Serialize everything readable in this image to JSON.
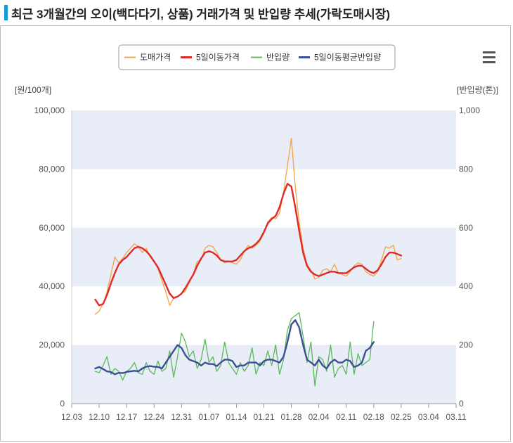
{
  "title": "최근 3개월간의 오이(백다다기, 상품) 거래가격 및 반입량 추세(가락도매시장)",
  "menu_icon": "hamburger-menu-icon",
  "colors": {
    "price": "#f5a340",
    "price_ma": "#e02a2a",
    "volume": "#5cb85c",
    "volume_ma": "#3b4f94",
    "band": "#e8edf8",
    "title_bar": "#1a9bd7"
  },
  "chart_data": {
    "type": "line",
    "legend": [
      "도매가격",
      "5일이동가격",
      "반입량",
      "5일이동평균반입량"
    ],
    "legend_position": "top-center",
    "y_left": {
      "label": "[원/100개]",
      "range": [
        0,
        100000
      ],
      "ticks": [
        "0",
        "20,000",
        "40,000",
        "60,000",
        "80,000",
        "100,000"
      ]
    },
    "y_right": {
      "label": "[반입량(톤)]",
      "range": [
        0,
        1000
      ],
      "ticks": [
        "0",
        "200",
        "400",
        "600",
        "800",
        "1,000"
      ]
    },
    "x_ticks": [
      "12.03",
      "12.10",
      "12.17",
      "12.24",
      "12.31",
      "01.07",
      "01.14",
      "01.21",
      "01.28",
      "02.04",
      "02.11",
      "02.18",
      "02.25",
      "03.04",
      "03.11"
    ],
    "x_range_days": [
      0,
      98
    ],
    "series": [
      {
        "name": "도매가격",
        "axis": "left",
        "points": [
          [
            6,
            30500
          ],
          [
            7,
            31500
          ],
          [
            8,
            34000
          ],
          [
            9,
            38000
          ],
          [
            10,
            44000
          ],
          [
            11,
            50000
          ],
          [
            12,
            48000
          ],
          [
            13,
            49500
          ],
          [
            14,
            51500
          ],
          [
            15,
            53000
          ],
          [
            16,
            54500
          ],
          [
            17,
            53500
          ],
          [
            18,
            51500
          ],
          [
            19,
            53000
          ],
          [
            20,
            50000
          ],
          [
            21,
            48500
          ],
          [
            22,
            46000
          ],
          [
            23,
            42000
          ],
          [
            24,
            38000
          ],
          [
            25,
            33500
          ],
          [
            26,
            36000
          ],
          [
            27,
            36500
          ],
          [
            28,
            37500
          ],
          [
            29,
            38500
          ],
          [
            31,
            44000
          ],
          [
            32,
            48500
          ],
          [
            33,
            49000
          ],
          [
            34,
            53000
          ],
          [
            35,
            54000
          ],
          [
            36,
            53500
          ],
          [
            37,
            51500
          ],
          [
            38,
            49000
          ],
          [
            39,
            48000
          ],
          [
            40,
            48500
          ],
          [
            41,
            48000
          ],
          [
            42,
            47500
          ],
          [
            43,
            49000
          ],
          [
            44,
            52000
          ],
          [
            45,
            54000
          ],
          [
            46,
            53000
          ],
          [
            47,
            54000
          ],
          [
            48,
            55500
          ],
          [
            49,
            58000
          ],
          [
            50,
            62000
          ],
          [
            51,
            63500
          ],
          [
            52,
            63000
          ],
          [
            53,
            65000
          ],
          [
            54,
            72000
          ],
          [
            55,
            81000
          ],
          [
            56,
            90500
          ],
          [
            57,
            74000
          ],
          [
            58,
            62000
          ],
          [
            59,
            53000
          ],
          [
            60,
            47500
          ],
          [
            61,
            45500
          ],
          [
            62,
            42500
          ],
          [
            63,
            43000
          ],
          [
            64,
            45500
          ],
          [
            65,
            46000
          ],
          [
            66,
            45000
          ],
          [
            67,
            47500
          ],
          [
            68,
            44500
          ],
          [
            69,
            44000
          ],
          [
            70,
            43500
          ],
          [
            71,
            45000
          ],
          [
            72,
            47000
          ],
          [
            73,
            48000
          ],
          [
            74,
            47500
          ],
          [
            75,
            45000
          ],
          [
            76,
            44000
          ],
          [
            77,
            43500
          ],
          [
            78,
            45000
          ],
          [
            79,
            49000
          ],
          [
            80,
            53500
          ],
          [
            81,
            53000
          ],
          [
            82,
            54000
          ],
          [
            83,
            49000
          ],
          [
            84,
            49500
          ]
        ]
      },
      {
        "name": "5일이동가격",
        "axis": "left",
        "points": [
          [
            6,
            35500
          ],
          [
            7,
            33500
          ],
          [
            8,
            34000
          ],
          [
            9,
            37000
          ],
          [
            10,
            41000
          ],
          [
            11,
            44500
          ],
          [
            12,
            47500
          ],
          [
            13,
            49000
          ],
          [
            14,
            50000
          ],
          [
            15,
            51500
          ],
          [
            16,
            53000
          ],
          [
            17,
            53500
          ],
          [
            18,
            53000
          ],
          [
            19,
            52000
          ],
          [
            20,
            50500
          ],
          [
            21,
            48500
          ],
          [
            22,
            46500
          ],
          [
            23,
            43500
          ],
          [
            24,
            40500
          ],
          [
            25,
            37500
          ],
          [
            26,
            36000
          ],
          [
            27,
            36500
          ],
          [
            28,
            37500
          ],
          [
            29,
            39500
          ],
          [
            31,
            44000
          ],
          [
            32,
            47000
          ],
          [
            33,
            49500
          ],
          [
            34,
            51500
          ],
          [
            35,
            52000
          ],
          [
            36,
            51500
          ],
          [
            37,
            50500
          ],
          [
            38,
            49000
          ],
          [
            39,
            48500
          ],
          [
            40,
            48500
          ],
          [
            41,
            48500
          ],
          [
            42,
            49000
          ],
          [
            43,
            50500
          ],
          [
            44,
            52000
          ],
          [
            45,
            53000
          ],
          [
            46,
            53500
          ],
          [
            47,
            54500
          ],
          [
            48,
            56000
          ],
          [
            49,
            58500
          ],
          [
            50,
            61500
          ],
          [
            51,
            63000
          ],
          [
            52,
            64000
          ],
          [
            53,
            67000
          ],
          [
            54,
            71500
          ],
          [
            55,
            75000
          ],
          [
            56,
            74000
          ],
          [
            57,
            67000
          ],
          [
            58,
            59000
          ],
          [
            59,
            51500
          ],
          [
            60,
            47000
          ],
          [
            61,
            45000
          ],
          [
            62,
            44000
          ],
          [
            63,
            43500
          ],
          [
            64,
            44000
          ],
          [
            65,
            44500
          ],
          [
            66,
            45000
          ],
          [
            67,
            45000
          ],
          [
            68,
            44500
          ],
          [
            69,
            44500
          ],
          [
            70,
            44500
          ],
          [
            71,
            45500
          ],
          [
            72,
            46500
          ],
          [
            73,
            47000
          ],
          [
            74,
            47000
          ],
          [
            75,
            46000
          ],
          [
            76,
            45000
          ],
          [
            77,
            44500
          ],
          [
            78,
            45500
          ],
          [
            79,
            47500
          ],
          [
            80,
            50000
          ],
          [
            81,
            51500
          ],
          [
            82,
            51500
          ],
          [
            83,
            51000
          ],
          [
            84,
            50500
          ]
        ]
      },
      {
        "name": "반입량",
        "axis": "right",
        "points": [
          [
            6,
            110
          ],
          [
            7,
            105
          ],
          [
            8,
            130
          ],
          [
            9,
            160
          ],
          [
            10,
            100
          ],
          [
            11,
            120
          ],
          [
            12,
            110
          ],
          [
            13,
            80
          ],
          [
            14,
            110
          ],
          [
            15,
            120
          ],
          [
            16,
            140
          ],
          [
            17,
            105
          ],
          [
            18,
            100
          ],
          [
            19,
            140
          ],
          [
            20,
            110
          ],
          [
            21,
            100
          ],
          [
            22,
            145
          ],
          [
            23,
            110
          ],
          [
            24,
            120
          ],
          [
            25,
            180
          ],
          [
            26,
            90
          ],
          [
            27,
            160
          ],
          [
            28,
            240
          ],
          [
            29,
            210
          ],
          [
            30,
            160
          ],
          [
            31,
            180
          ],
          [
            32,
            120
          ],
          [
            33,
            150
          ],
          [
            34,
            220
          ],
          [
            35,
            140
          ],
          [
            36,
            160
          ],
          [
            37,
            110
          ],
          [
            38,
            130
          ],
          [
            39,
            210
          ],
          [
            40,
            140
          ],
          [
            41,
            120
          ],
          [
            42,
            100
          ],
          [
            43,
            140
          ],
          [
            44,
            110
          ],
          [
            45,
            130
          ],
          [
            46,
            190
          ],
          [
            47,
            100
          ],
          [
            48,
            140
          ],
          [
            49,
            130
          ],
          [
            50,
            180
          ],
          [
            51,
            130
          ],
          [
            52,
            200
          ],
          [
            53,
            100
          ],
          [
            54,
            150
          ],
          [
            55,
            250
          ],
          [
            56,
            290
          ],
          [
            57,
            300
          ],
          [
            58,
            310
          ],
          [
            59,
            230
          ],
          [
            60,
            140
          ],
          [
            61,
            210
          ],
          [
            62,
            60
          ],
          [
            63,
            160
          ],
          [
            64,
            150
          ],
          [
            65,
            110
          ],
          [
            66,
            200
          ],
          [
            67,
            90
          ],
          [
            68,
            120
          ],
          [
            69,
            130
          ],
          [
            70,
            100
          ],
          [
            71,
            210
          ],
          [
            72,
            100
          ],
          [
            73,
            170
          ],
          [
            74,
            130
          ],
          [
            75,
            140
          ],
          [
            76,
            150
          ],
          [
            77,
            280
          ]
        ]
      },
      {
        "name": "5일이동평균반입량",
        "axis": "right",
        "points": [
          [
            6,
            120
          ],
          [
            7,
            125
          ],
          [
            8,
            118
          ],
          [
            9,
            110
          ],
          [
            10,
            108
          ],
          [
            11,
            100
          ],
          [
            12,
            105
          ],
          [
            13,
            104
          ],
          [
            14,
            108
          ],
          [
            15,
            110
          ],
          [
            16,
            112
          ],
          [
            17,
            110
          ],
          [
            18,
            120
          ],
          [
            19,
            126
          ],
          [
            20,
            128
          ],
          [
            21,
            126
          ],
          [
            22,
            125
          ],
          [
            23,
            120
          ],
          [
            24,
            140
          ],
          [
            25,
            160
          ],
          [
            26,
            180
          ],
          [
            27,
            200
          ],
          [
            28,
            190
          ],
          [
            29,
            165
          ],
          [
            30,
            150
          ],
          [
            31,
            145
          ],
          [
            32,
            140
          ],
          [
            33,
            130
          ],
          [
            34,
            140
          ],
          [
            35,
            135
          ],
          [
            36,
            135
          ],
          [
            37,
            128
          ],
          [
            38,
            140
          ],
          [
            39,
            150
          ],
          [
            40,
            150
          ],
          [
            41,
            145
          ],
          [
            42,
            125
          ],
          [
            43,
            130
          ],
          [
            44,
            130
          ],
          [
            45,
            140
          ],
          [
            46,
            140
          ],
          [
            47,
            140
          ],
          [
            48,
            130
          ],
          [
            49,
            145
          ],
          [
            50,
            150
          ],
          [
            51,
            150
          ],
          [
            52,
            145
          ],
          [
            53,
            140
          ],
          [
            54,
            160
          ],
          [
            55,
            210
          ],
          [
            56,
            270
          ],
          [
            57,
            285
          ],
          [
            58,
            260
          ],
          [
            59,
            200
          ],
          [
            60,
            150
          ],
          [
            61,
            140
          ],
          [
            62,
            130
          ],
          [
            63,
            150
          ],
          [
            64,
            130
          ],
          [
            65,
            120
          ],
          [
            66,
            140
          ],
          [
            67,
            150
          ],
          [
            68,
            140
          ],
          [
            69,
            140
          ],
          [
            70,
            150
          ],
          [
            71,
            145
          ],
          [
            72,
            125
          ],
          [
            73,
            130
          ],
          [
            74,
            140
          ],
          [
            75,
            180
          ],
          [
            76,
            190
          ],
          [
            77,
            210
          ]
        ]
      }
    ]
  }
}
